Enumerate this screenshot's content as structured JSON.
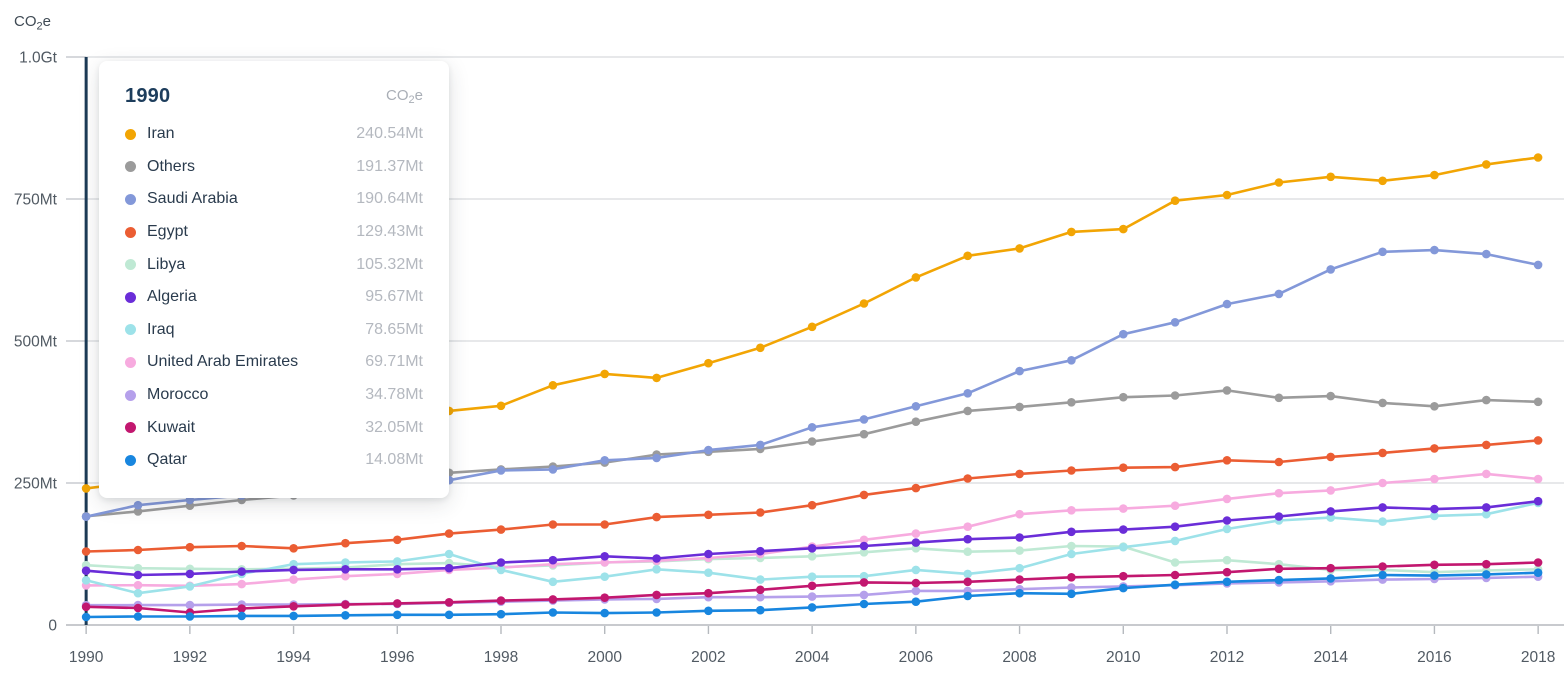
{
  "axis_title": {
    "pre": "CO",
    "sub": "2",
    "post": "e"
  },
  "tooltip": {
    "title": "1990",
    "unit": {
      "pre": "CO",
      "sub": "2",
      "post": "e"
    },
    "rows": [
      {
        "label": "Iran",
        "value": "240.54Mt"
      },
      {
        "label": "Others",
        "value": "191.37Mt"
      },
      {
        "label": "Saudi Arabia",
        "value": "190.64Mt"
      },
      {
        "label": "Egypt",
        "value": "129.43Mt"
      },
      {
        "label": "Libya",
        "value": "105.32Mt"
      },
      {
        "label": "Algeria",
        "value": "95.67Mt"
      },
      {
        "label": "Iraq",
        "value": "78.65Mt"
      },
      {
        "label": "United Arab Emirates",
        "value": "69.71Mt"
      },
      {
        "label": "Morocco",
        "value": "34.78Mt"
      },
      {
        "label": "Kuwait",
        "value": "32.05Mt"
      },
      {
        "label": "Qatar",
        "value": "14.08Mt"
      }
    ]
  },
  "style_colors": {
    "hover_line": "#1c3a55",
    "gridline": "#dfe1e4",
    "grid_stub": "#c9ccd1",
    "axis_line": "#b5b9be",
    "axis_text": "#515a63",
    "axis_title_text": "#3f4a54"
  },
  "chart_data": {
    "type": "line",
    "hovered_year": 1990,
    "x": [
      1990,
      1991,
      1992,
      1993,
      1994,
      1995,
      1996,
      1997,
      1998,
      1999,
      2000,
      2001,
      2002,
      2003,
      2004,
      2005,
      2006,
      2007,
      2008,
      2009,
      2010,
      2011,
      2012,
      2013,
      2014,
      2015,
      2016,
      2017,
      2018
    ],
    "x_tick_years": [
      1990,
      1992,
      1994,
      1996,
      1998,
      2000,
      2002,
      2004,
      2006,
      2008,
      2010,
      2012,
      2014,
      2016,
      2018
    ],
    "y_ticks": [
      {
        "label": "1.0Gt",
        "value": 1000
      },
      {
        "label": "750Mt",
        "value": 750
      },
      {
        "label": "500Mt",
        "value": 500
      },
      {
        "label": "250Mt",
        "value": 250
      },
      {
        "label": "0",
        "value": 0
      }
    ],
    "ylim": [
      0,
      1000
    ],
    "grid": true,
    "legend_position": "tooltip",
    "series": [
      {
        "name": "Iran",
        "color": "#f2a504",
        "values": [
          240.54,
          252,
          265,
          280,
          297,
          315,
          345,
          377,
          386,
          422,
          442,
          435,
          461,
          488,
          525,
          566,
          612,
          650,
          663,
          692,
          697,
          747,
          757,
          779,
          789,
          782,
          792,
          811,
          823
        ]
      },
      {
        "name": "Others",
        "color": "#9b9b9b",
        "values": [
          191.37,
          200,
          210,
          220,
          228,
          238,
          252,
          268,
          274,
          279,
          286,
          300,
          305,
          310,
          323,
          336,
          358,
          377,
          384,
          392,
          401,
          404,
          413,
          400,
          403,
          391,
          385,
          396,
          393
        ]
      },
      {
        "name": "Saudi Arabia",
        "color": "#8398d9",
        "values": [
          190.64,
          211,
          220,
          228,
          235,
          242,
          248,
          255,
          272,
          274,
          290,
          294,
          308,
          317,
          348,
          362,
          385,
          408,
          447,
          466,
          512,
          533,
          565,
          583,
          626,
          657,
          660,
          653,
          634
        ]
      },
      {
        "name": "Egypt",
        "color": "#eb5d33",
        "values": [
          129.43,
          132,
          137,
          139,
          135,
          144,
          150,
          161,
          168,
          177,
          177,
          190,
          194,
          198,
          211,
          229,
          241,
          258,
          266,
          272,
          277,
          278,
          290,
          287,
          296,
          303,
          311,
          317,
          325
        ]
      },
      {
        "name": "Libya",
        "color": "#bfe9d4",
        "values": [
          105.32,
          100,
          99,
          98,
          99,
          101,
          107,
          109,
          102,
          105,
          110,
          112,
          116,
          118,
          121,
          128,
          135,
          129,
          131,
          139,
          138,
          110,
          114,
          107,
          97,
          97,
          93,
          96,
          98
        ]
      },
      {
        "name": "Algeria",
        "color": "#6a2dd8",
        "values": [
          95.67,
          88,
          90,
          94,
          97,
          98,
          98,
          100,
          110,
          114,
          121,
          117,
          125,
          130,
          135,
          139,
          145,
          151,
          154,
          164,
          168,
          173,
          184,
          191,
          200,
          207,
          204,
          207,
          218
        ]
      },
      {
        "name": "Iraq",
        "color": "#9de2e9",
        "values": [
          78.65,
          56,
          68,
          90,
          107,
          110,
          112,
          125,
          97,
          76,
          85,
          98,
          92,
          80,
          85,
          86,
          97,
          90,
          100,
          125,
          137,
          148,
          169,
          184,
          189,
          182,
          192,
          195,
          215
        ]
      },
      {
        "name": "United Arab Emirates",
        "color": "#f7abdf",
        "values": [
          69.71,
          70,
          69,
          72,
          80,
          86,
          90,
          97,
          101,
          107,
          110,
          113,
          118,
          125,
          138,
          150,
          161,
          173,
          195,
          202,
          205,
          210,
          222,
          232,
          237,
          250,
          257,
          266,
          257
        ]
      },
      {
        "name": "Morocco",
        "color": "#b5a0eb",
        "values": [
          34.78,
          35,
          35,
          36,
          36,
          37,
          37,
          39,
          41,
          43,
          45,
          46,
          49,
          49,
          50,
          53,
          60,
          60,
          63,
          66,
          68,
          70,
          73,
          75,
          77,
          80,
          81,
          83,
          85
        ]
      },
      {
        "name": "Kuwait",
        "color": "#c2176f",
        "values": [
          32.05,
          30,
          22,
          29,
          33,
          36,
          38,
          40,
          43,
          45,
          48,
          53,
          56,
          62,
          69,
          75,
          74,
          76,
          80,
          84,
          86,
          88,
          93,
          99,
          100,
          103,
          106,
          107,
          110
        ]
      },
      {
        "name": "Qatar",
        "color": "#1886df",
        "values": [
          14.08,
          15,
          15,
          16,
          16,
          17,
          18,
          18,
          19,
          22,
          21,
          22,
          25,
          26,
          31,
          37,
          41,
          51,
          56,
          55,
          65,
          71,
          76,
          79,
          82,
          88,
          87,
          89,
          92
        ]
      }
    ]
  }
}
